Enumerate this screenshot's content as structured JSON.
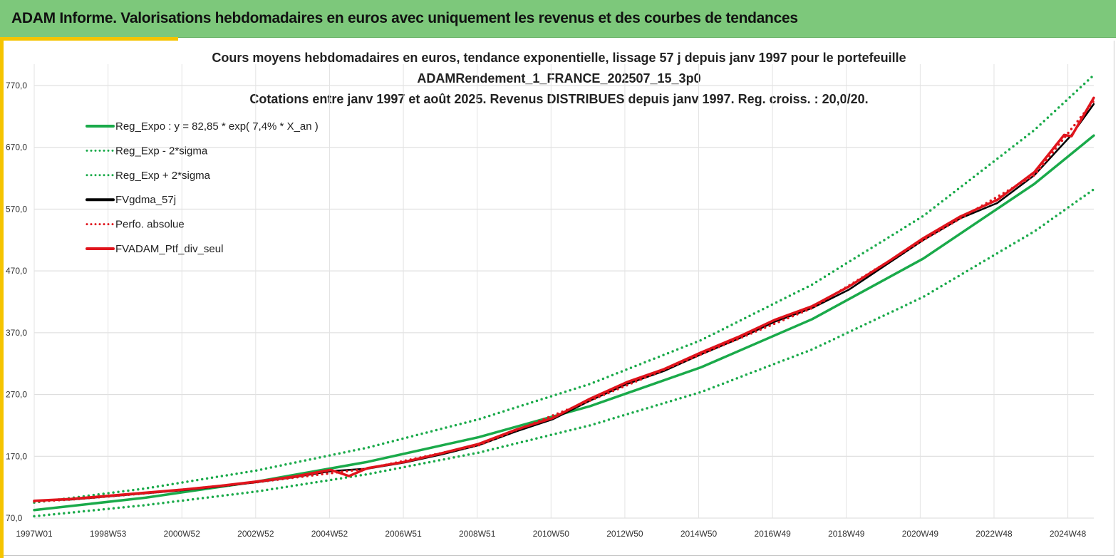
{
  "header": {
    "title": "ADAM Informe. Valorisations hebdomadaires en euros avec uniquement les revenus et des courbes de tendances"
  },
  "colors": {
    "header_bg": "#7dc87b",
    "accent": "#f5c400",
    "trend_green": "#1aaa4a",
    "fv_black": "#000000",
    "ptf_red": "#e0141c"
  },
  "chart_data": {
    "type": "line",
    "title_lines": [
      "Cours moyens hebdomadaires  en euros, tendance exponentielle, lissage 57 j depuis janv 1997 pour le portefeuille",
      "ADAMRendement_1_FRANCE_202507_15_3p0",
      "Cotations  entre janv 1997 et août 2025. Revenus DISTRIBUES depuis janv 1997. Reg. croiss. : 20,0/20."
    ],
    "xlabel": "",
    "ylabel": "",
    "ylim": [
      70,
      770
    ],
    "y_ticks": [
      "70,0",
      "170,0",
      "270,0",
      "370,0",
      "470,0",
      "570,0",
      "670,0",
      "770,0"
    ],
    "x_ticks": [
      "1997W01",
      "1998W53",
      "2000W52",
      "2002W52",
      "2004W52",
      "2006W51",
      "2008W51",
      "2010W50",
      "2012W50",
      "2014W50",
      "2016W49",
      "2018W49",
      "2020W49",
      "2022W48",
      "2024W48"
    ],
    "xlim_years": [
      1997.0,
      2025.6
    ],
    "grid": true,
    "legend_position": "top-left",
    "series": [
      {
        "name": "Reg_Expo : y = 82,85 * exp( 7,4% *  X_an )",
        "style": "solid",
        "color": "#1aaa4a",
        "x": [
          1997.0,
          2000.0,
          2003.0,
          2006.0,
          2009.0,
          2012.0,
          2015.0,
          2018.0,
          2021.0,
          2024.0,
          2025.6
        ],
        "y": [
          83,
          103,
          129,
          161,
          201,
          251,
          314,
          392,
          490,
          611,
          689
        ]
      },
      {
        "name": "Reg_Exp - 2*sigma",
        "style": "dotted",
        "color": "#1aaa4a",
        "x": [
          1997.0,
          2000.0,
          2003.0,
          2006.0,
          2009.0,
          2012.0,
          2015.0,
          2018.0,
          2021.0,
          2024.0,
          2025.6
        ],
        "y": [
          73,
          91,
          113,
          141,
          176,
          220,
          274,
          343,
          428,
          534,
          602
        ]
      },
      {
        "name": "Reg_Exp + 2*sigma",
        "style": "dotted",
        "color": "#1aaa4a",
        "x": [
          1997.0,
          2000.0,
          2003.0,
          2006.0,
          2009.0,
          2012.0,
          2015.0,
          2018.0,
          2021.0,
          2024.0,
          2025.6
        ],
        "y": [
          95,
          118,
          147,
          184,
          230,
          287,
          358,
          448,
          559,
          698,
          787
        ]
      },
      {
        "name": "FVgdma_57j",
        "style": "solid",
        "color": "#000000",
        "x": [
          1997.0,
          1998.0,
          1999.0,
          2000.0,
          2001.0,
          2002.0,
          2003.0,
          2004.0,
          2005.0,
          2006.0,
          2007.0,
          2008.0,
          2009.0,
          2010.0,
          2011.0,
          2012.0,
          2013.0,
          2014.0,
          2015.0,
          2016.0,
          2017.0,
          2018.0,
          2019.0,
          2020.0,
          2021.0,
          2022.0,
          2023.0,
          2024.0,
          2025.0,
          2025.6
        ],
        "y": [
          98,
          100,
          105,
          110,
          115,
          121,
          128,
          136,
          146,
          150,
          160,
          173,
          188,
          210,
          230,
          260,
          287,
          308,
          335,
          360,
          388,
          410,
          440,
          480,
          520,
          555,
          580,
          625,
          690,
          740
        ]
      },
      {
        "name": "Perfo. absolue",
        "style": "dotted",
        "color": "#e0141c",
        "x": [
          1997.0,
          1998.0,
          2000.0,
          2003.0,
          2006.0,
          2009.0,
          2012.0,
          2015.0,
          2018.0,
          2021.0,
          2024.0,
          2025.6
        ],
        "y": [
          97,
          100,
          110,
          128,
          150,
          188,
          260,
          335,
          410,
          520,
          625,
          745
        ]
      },
      {
        "name": "FVADAM_Ptf_div_seul",
        "style": "solid",
        "color": "#e0141c",
        "x": [
          1997.0,
          1998.0,
          1999.0,
          2000.0,
          2001.0,
          2002.0,
          2003.0,
          2004.0,
          2005.0,
          2005.5,
          2006.0,
          2007.0,
          2008.0,
          2009.0,
          2010.0,
          2011.0,
          2012.0,
          2013.0,
          2014.0,
          2015.0,
          2016.0,
          2017.0,
          2018.0,
          2019.0,
          2020.0,
          2021.0,
          2022.0,
          2023.0,
          2024.0,
          2024.8,
          2025.0,
          2025.6
        ],
        "y": [
          98,
          101,
          106,
          111,
          116,
          122,
          129,
          137,
          148,
          138,
          151,
          161,
          175,
          190,
          213,
          232,
          263,
          290,
          311,
          338,
          363,
          391,
          413,
          445,
          483,
          523,
          558,
          585,
          630,
          690,
          688,
          750
        ]
      }
    ]
  }
}
